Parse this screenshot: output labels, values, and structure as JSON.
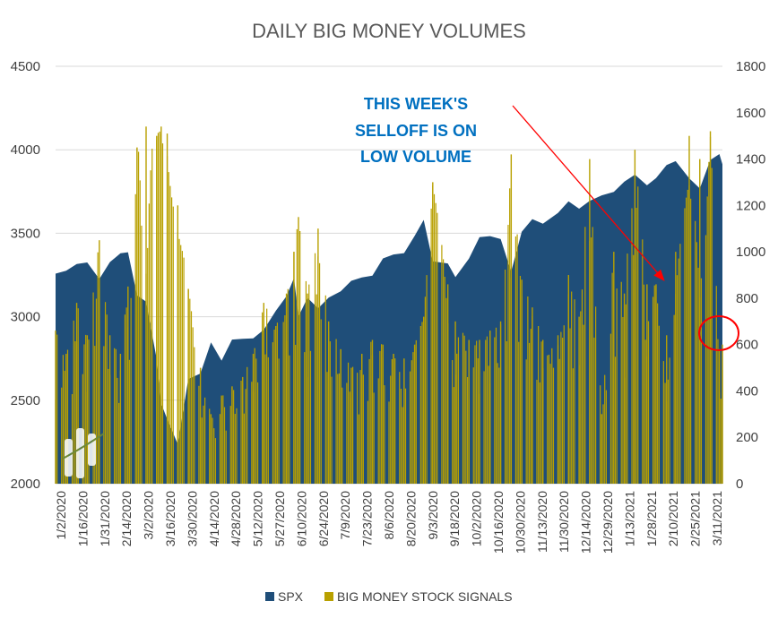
{
  "chart_data": {
    "type": "area+bar",
    "title": "DAILY BIG MONEY VOLUMES",
    "y_left": {
      "min": 2000,
      "max": 4500,
      "ticks": [
        2000,
        2500,
        3000,
        3500,
        4000,
        4500
      ]
    },
    "y_right": {
      "min": 0,
      "max": 1800,
      "ticks": [
        0,
        200,
        400,
        600,
        800,
        1000,
        1200,
        1400,
        1600,
        1800
      ]
    },
    "x_tick_labels": [
      "1/2/2020",
      "1/16/2020",
      "1/31/2020",
      "2/14/2020",
      "3/2/2020",
      "3/16/2020",
      "3/30/2020",
      "4/14/2020",
      "4/28/2020",
      "5/12/2020",
      "5/27/2020",
      "6/10/2020",
      "6/24/2020",
      "7/9/2020",
      "7/23/2020",
      "8/6/2020",
      "8/20/2020",
      "9/3/2020",
      "9/18/2020",
      "10/2/2020",
      "10/16/2020",
      "10/30/2020",
      "11/13/2020",
      "11/30/2020",
      "12/14/2020",
      "12/29/2020",
      "1/13/2021",
      "1/28/2021",
      "2/10/2021",
      "2/25/2021",
      "3/11/2021"
    ],
    "series": [
      {
        "name": "SPX",
        "axis": "left",
        "color": "#1f4e79",
        "points": [
          [
            "1/2/2020",
            3258
          ],
          [
            "1/9/2020",
            3275
          ],
          [
            "1/16/2020",
            3316
          ],
          [
            "1/23/2020",
            3325
          ],
          [
            "1/31/2020",
            3226
          ],
          [
            "2/7/2020",
            3327
          ],
          [
            "2/14/2020",
            3380
          ],
          [
            "2/19/2020",
            3386
          ],
          [
            "2/25/2020",
            3128
          ],
          [
            "3/2/2020",
            3090
          ],
          [
            "3/9/2020",
            2746
          ],
          [
            "3/12/2020",
            2480
          ],
          [
            "3/16/2020",
            2386
          ],
          [
            "3/23/2020",
            2237
          ],
          [
            "3/30/2020",
            2627
          ],
          [
            "4/7/2020",
            2660
          ],
          [
            "4/14/2020",
            2846
          ],
          [
            "4/21/2020",
            2737
          ],
          [
            "4/28/2020",
            2863
          ],
          [
            "5/5/2020",
            2868
          ],
          [
            "5/12/2020",
            2870
          ],
          [
            "5/19/2020",
            2922
          ],
          [
            "5/27/2020",
            3036
          ],
          [
            "6/3/2020",
            3122
          ],
          [
            "6/8/2020",
            3232
          ],
          [
            "6/11/2020",
            3002
          ],
          [
            "6/17/2020",
            3113
          ],
          [
            "6/24/2020",
            3050
          ],
          [
            "7/1/2020",
            3115
          ],
          [
            "7/9/2020",
            3152
          ],
          [
            "7/16/2020",
            3215
          ],
          [
            "7/23/2020",
            3235
          ],
          [
            "7/30/2020",
            3246
          ],
          [
            "8/6/2020",
            3349
          ],
          [
            "8/13/2020",
            3373
          ],
          [
            "8/20/2020",
            3381
          ],
          [
            "8/27/2020",
            3484
          ],
          [
            "9/2/2020",
            3580
          ],
          [
            "9/8/2020",
            3332
          ],
          [
            "9/18/2020",
            3319
          ],
          [
            "9/23/2020",
            3237
          ],
          [
            "10/2/2020",
            3348
          ],
          [
            "10/9/2020",
            3477
          ],
          [
            "10/16/2020",
            3483
          ],
          [
            "10/23/2020",
            3465
          ],
          [
            "10/30/2020",
            3270
          ],
          [
            "11/6/2020",
            3509
          ],
          [
            "11/13/2020",
            3585
          ],
          [
            "11/20/2020",
            3557
          ],
          [
            "11/30/2020",
            3622
          ],
          [
            "12/7/2020",
            3691
          ],
          [
            "12/14/2020",
            3647
          ],
          [
            "12/21/2020",
            3694
          ],
          [
            "12/29/2020",
            3727
          ],
          [
            "1/6/2021",
            3748
          ],
          [
            "1/13/2021",
            3809
          ],
          [
            "1/20/2021",
            3851
          ],
          [
            "1/28/2021",
            3787
          ],
          [
            "2/3/2021",
            3830
          ],
          [
            "2/10/2021",
            3909
          ],
          [
            "2/16/2021",
            3932
          ],
          [
            "2/25/2021",
            3829
          ],
          [
            "3/4/2021",
            3768
          ],
          [
            "3/11/2021",
            3939
          ],
          [
            "3/17/2021",
            3974
          ],
          [
            "3/19/2021",
            3913
          ]
        ]
      },
      {
        "name": "BIG MONEY STOCK SIGNALS",
        "axis": "right",
        "color": "#b8a000",
        "points": [
          [
            "1/2/2020",
            660
          ],
          [
            "1/9/2020",
            560
          ],
          [
            "1/16/2020",
            780
          ],
          [
            "1/23/2020",
            640
          ],
          [
            "1/31/2020",
            1050
          ],
          [
            "2/7/2020",
            640
          ],
          [
            "2/14/2020",
            560
          ],
          [
            "2/19/2020",
            850
          ],
          [
            "2/25/2020",
            1450
          ],
          [
            "3/2/2020",
            1540
          ],
          [
            "3/9/2020",
            1500
          ],
          [
            "3/12/2020",
            1540
          ],
          [
            "3/16/2020",
            1510
          ],
          [
            "3/23/2020",
            1200
          ],
          [
            "3/30/2020",
            840
          ],
          [
            "4/7/2020",
            500
          ],
          [
            "4/14/2020",
            300
          ],
          [
            "4/21/2020",
            380
          ],
          [
            "4/28/2020",
            420
          ],
          [
            "5/5/2020",
            460
          ],
          [
            "5/12/2020",
            560
          ],
          [
            "5/19/2020",
            780
          ],
          [
            "5/27/2020",
            680
          ],
          [
            "6/3/2020",
            820
          ],
          [
            "6/8/2020",
            1000
          ],
          [
            "6/11/2020",
            1150
          ],
          [
            "6/17/2020",
            820
          ],
          [
            "6/24/2020",
            1100
          ],
          [
            "7/1/2020",
            700
          ],
          [
            "7/9/2020",
            580
          ],
          [
            "7/16/2020",
            500
          ],
          [
            "7/23/2020",
            560
          ],
          [
            "7/30/2020",
            620
          ],
          [
            "8/6/2020",
            600
          ],
          [
            "8/13/2020",
            560
          ],
          [
            "8/20/2020",
            540
          ],
          [
            "8/27/2020",
            600
          ],
          [
            "9/2/2020",
            720
          ],
          [
            "9/8/2020",
            1300
          ],
          [
            "9/18/2020",
            860
          ],
          [
            "9/23/2020",
            700
          ],
          [
            "10/2/2020",
            620
          ],
          [
            "10/9/2020",
            620
          ],
          [
            "10/16/2020",
            660
          ],
          [
            "10/23/2020",
            700
          ],
          [
            "10/30/2020",
            1420
          ],
          [
            "11/6/2020",
            880
          ],
          [
            "11/13/2020",
            760
          ],
          [
            "11/20/2020",
            620
          ],
          [
            "11/30/2020",
            640
          ],
          [
            "12/7/2020",
            900
          ],
          [
            "12/14/2020",
            720
          ],
          [
            "12/21/2020",
            1400
          ],
          [
            "12/29/2020",
            300
          ],
          [
            "1/6/2021",
            1000
          ],
          [
            "1/13/2021",
            820
          ],
          [
            "1/20/2021",
            1440
          ],
          [
            "1/28/2021",
            860
          ],
          [
            "2/3/2021",
            860
          ],
          [
            "2/10/2021",
            640
          ],
          [
            "2/16/2021",
            1000
          ],
          [
            "2/25/2021",
            1500
          ],
          [
            "3/4/2021",
            1400
          ],
          [
            "3/11/2021",
            1520
          ],
          [
            "3/17/2021",
            580
          ],
          [
            "3/19/2021",
            600
          ]
        ]
      }
    ],
    "annotation": {
      "text": [
        "THIS WEEK'S",
        "SELLOFF IS ON",
        "LOW VOLUME"
      ],
      "color": "#0070c0",
      "arrow_color": "#ff0000",
      "highlight_ellipse_color": "#ff0000"
    },
    "legend": {
      "placement": "bottom-center",
      "entries": [
        "SPX",
        "BIG MONEY STOCK SIGNALS"
      ]
    }
  }
}
